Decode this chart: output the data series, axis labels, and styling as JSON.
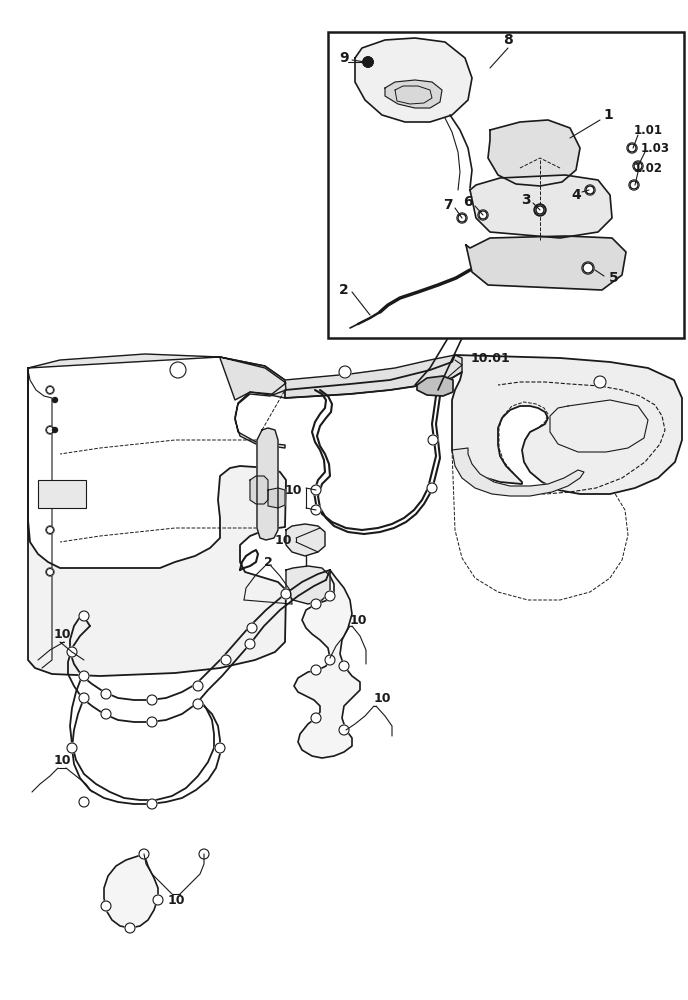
{
  "bg_color": "#ffffff",
  "line_color": "#1a1a1a",
  "fig_width": 6.88,
  "fig_height": 10.0,
  "dpi": 100
}
